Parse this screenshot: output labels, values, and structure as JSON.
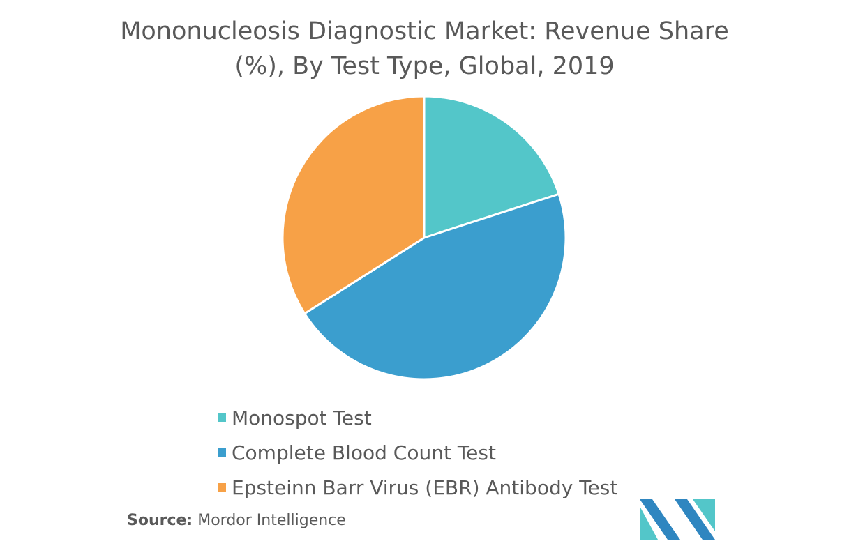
{
  "chart_data": {
    "type": "pie",
    "title_lines": [
      "Mononucleosis Diagnostic Market: Revenue Share",
      "(%), By Test Type, Global, 2019"
    ],
    "slices": [
      {
        "label": "Monospot Test",
        "value": 20,
        "color": "#53c6c9"
      },
      {
        "label": "Complete Blood Count Test",
        "value": 46,
        "color": "#3b9ece"
      },
      {
        "label": "Epsteinn Barr Virus (EBR) Antibody Test",
        "value": 34,
        "color": "#f7a147"
      }
    ],
    "legend_placement": "bottom"
  },
  "source": {
    "label": "Source:",
    "text": "Mordor Intelligence"
  },
  "logo": {
    "colors": [
      "#2f86c0",
      "#53c6c9"
    ]
  }
}
